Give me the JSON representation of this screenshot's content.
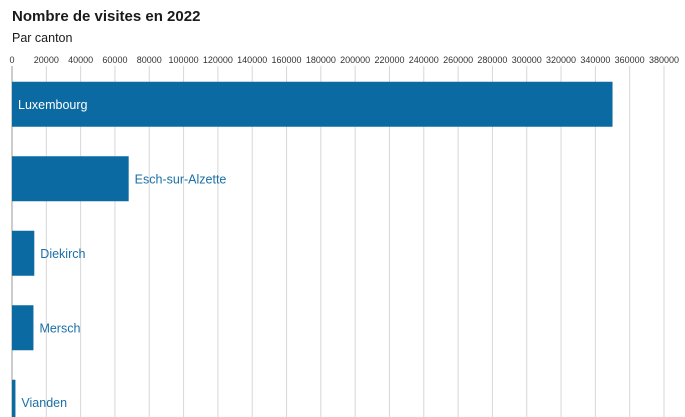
{
  "chart_data": {
    "type": "bar",
    "orientation": "horizontal",
    "title": "Nombre de visites en 2022",
    "subtitle": "Par canton",
    "categories": [
      "Luxembourg",
      "Esch-sur-Alzette",
      "Diekirch",
      "Mersch",
      "Vianden"
    ],
    "values": [
      350000,
      68000,
      13000,
      12500,
      2000
    ],
    "xlim": [
      0,
      380000
    ],
    "xticks": [
      0,
      20000,
      40000,
      60000,
      80000,
      100000,
      120000,
      140000,
      160000,
      180000,
      200000,
      220000,
      240000,
      260000,
      280000,
      300000,
      320000,
      340000,
      360000,
      380000
    ],
    "xlabel": "",
    "ylabel": "",
    "grid": true,
    "axis_position": "top",
    "legend": "none",
    "colors": {
      "bar": "#0b6aa2",
      "grid": "#d7d7d7",
      "label_inside": "#ffffff",
      "label_outside": "#1a6fa7",
      "tick_text": "#333333"
    }
  }
}
